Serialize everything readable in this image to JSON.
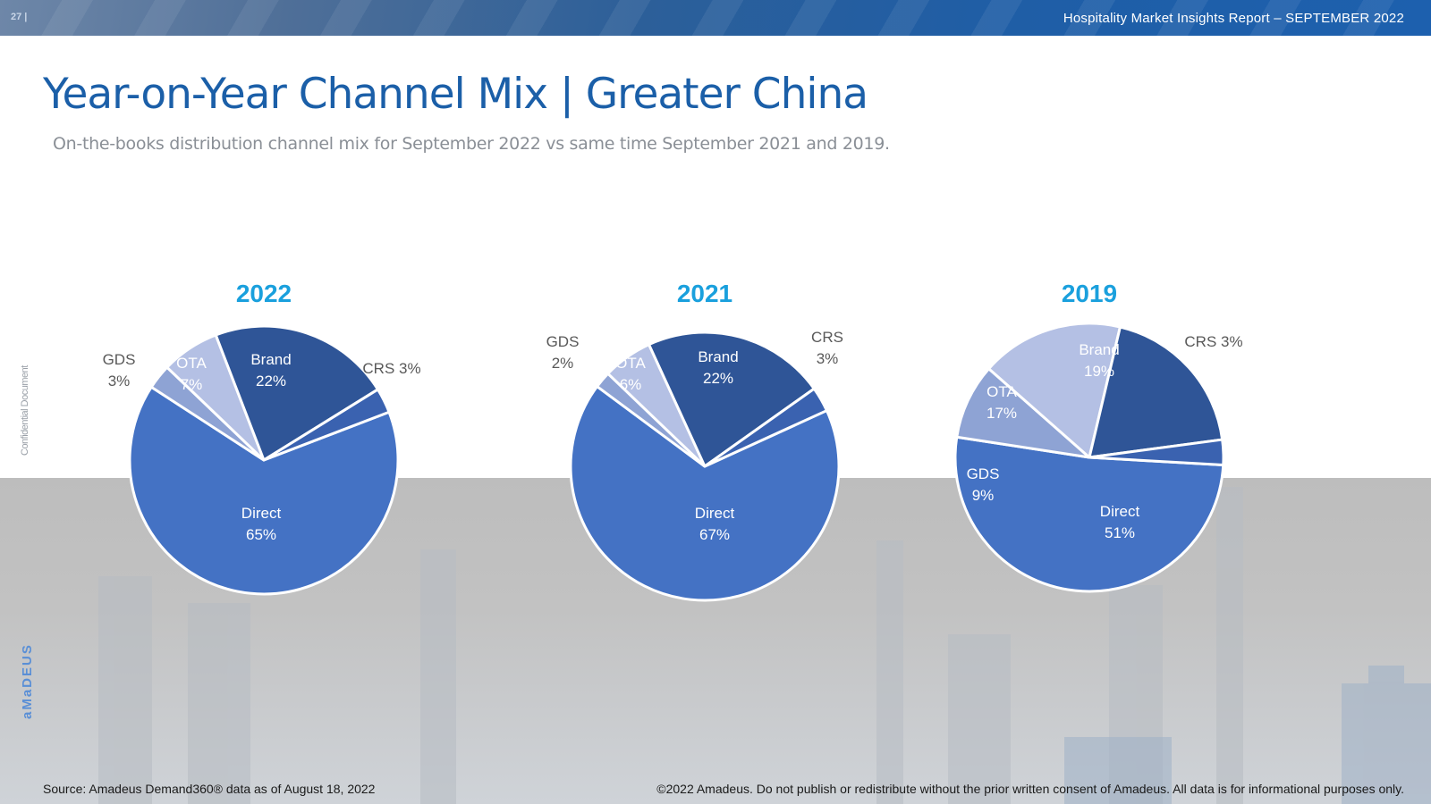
{
  "header": {
    "page_number": "27 |",
    "report_title": "Hospitality Market Insights Report – SEPTEMBER 2022"
  },
  "title": "Year-on-Year Channel Mix | Greater China",
  "subtitle": "On-the-books distribution channel mix for September 2022 vs same time September 2021 and 2019.",
  "side": {
    "confidential": "Confidential Document",
    "logo": "aMaDEUS"
  },
  "footer": {
    "source": "Source: Amadeus Demand360® data as of August 18, 2022",
    "copyright": "©2022 Amadeus. Do not publish or redistribute without the prior written consent of Amadeus. All data is for informational purposes only."
  },
  "colors": {
    "Direct": "#4472c4",
    "Brand": "#2f5597",
    "CRS": "#3a62b0",
    "GDS": "#8ea3d4",
    "OTA": "#b4c0e4",
    "year": "#1aa0dd"
  },
  "chart_data": [
    {
      "type": "pie",
      "title": "2022",
      "slices": [
        {
          "label": "Direct",
          "value": 65,
          "text": "65%"
        },
        {
          "label": "GDS",
          "value": 3,
          "text": "3%"
        },
        {
          "label": "OTA",
          "value": 7,
          "text": "7%"
        },
        {
          "label": "Brand",
          "value": 22,
          "text": "22%"
        },
        {
          "label": "CRS",
          "value": 3,
          "text": "3%"
        }
      ]
    },
    {
      "type": "pie",
      "title": "2021",
      "slices": [
        {
          "label": "Direct",
          "value": 67,
          "text": "67%"
        },
        {
          "label": "GDS",
          "value": 2,
          "text": "2%"
        },
        {
          "label": "OTA",
          "value": 6,
          "text": "6%"
        },
        {
          "label": "Brand",
          "value": 22,
          "text": "22%"
        },
        {
          "label": "CRS",
          "value": 3,
          "text": "3%"
        }
      ]
    },
    {
      "type": "pie",
      "title": "2019",
      "slices": [
        {
          "label": "Direct",
          "value": 51,
          "text": "51%"
        },
        {
          "label": "GDS",
          "value": 9,
          "text": "9%"
        },
        {
          "label": "OTA",
          "value": 17,
          "text": "17%"
        },
        {
          "label": "Brand",
          "value": 19,
          "text": "19%"
        },
        {
          "label": "CRS",
          "value": 3,
          "text": "3%"
        }
      ]
    }
  ]
}
